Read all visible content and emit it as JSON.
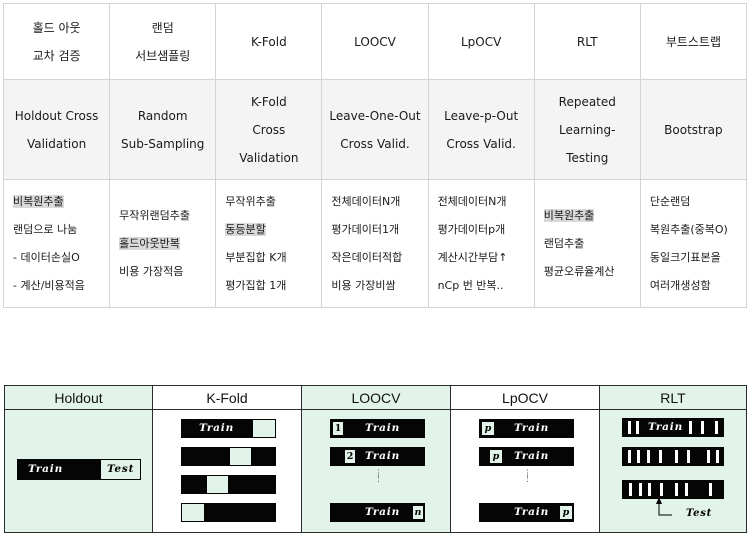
{
  "table": {
    "header_ko": [
      [
        "홀드 아웃",
        "교차 검증"
      ],
      [
        "랜덤",
        "서브샘플링"
      ],
      [
        "K-Fold"
      ],
      [
        "LOOCV"
      ],
      [
        "LpOCV"
      ],
      [
        "RLT"
      ],
      [
        "부트스트랩"
      ]
    ],
    "header_en": [
      [
        "Holdout Cross",
        "Validation"
      ],
      [
        "Random",
        "Sub-Sampling"
      ],
      [
        "K-Fold",
        "Cross",
        "Validation"
      ],
      [
        "Leave-One-Out",
        "Cross Valid."
      ],
      [
        "Leave-p-Out",
        "Cross Valid."
      ],
      [
        "Repeated",
        "Learning-",
        "Testing"
      ],
      [
        "Bootstrap"
      ]
    ],
    "features": [
      [
        "비복원추출",
        "랜덤으로 나눔",
        "- 데이터손실O",
        "- 계산/비용적음"
      ],
      [
        "무작위랜덤추출",
        "홀드아웃반복",
        "비용 가장적음"
      ],
      [
        "무작위추출",
        "동등분할",
        "부분집합 K개",
        "평가집합 1개"
      ],
      [
        "전체데이터N개",
        "평가데이터1개",
        "작은데이터적합",
        "비용 가장비쌈"
      ],
      [
        "전체데이터N개",
        "평가데이터p개",
        "계산시간부담↑",
        "nCp 번 반복.."
      ],
      [
        "비복원추출",
        "랜덤추출",
        "평균오류율계산"
      ],
      [
        "단순랜덤",
        "복원추출(중복O)",
        "동일크기표본을",
        "여러개생성함"
      ]
    ]
  },
  "diagram": {
    "columns": [
      "Holdout",
      "K-Fold",
      "LOOCV",
      "LpOCV",
      "RLT"
    ],
    "train_label": "Train",
    "test_label": "Test",
    "loocv_indices": [
      "1",
      "2",
      "n"
    ],
    "lpocv_mark": "p",
    "ellipsis": "⋮",
    "accent_color": "#e2f4e9",
    "bar_color": "#050505"
  }
}
